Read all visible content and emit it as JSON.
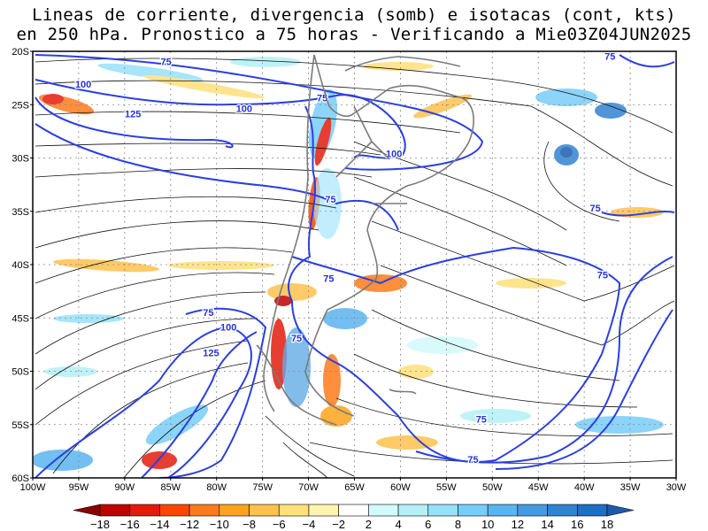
{
  "title": {
    "line1": "Lineas de corriente, divergencia (somb) e isotacas (cont, kts)",
    "line2": "en 250 hPa. Pronostico a 75 horas - Verificando a Mie03Z04JUN2025"
  },
  "map": {
    "lat_labels": [
      "20S",
      "25S",
      "30S",
      "35S",
      "40S",
      "45S",
      "50S",
      "55S",
      "60S"
    ],
    "lon_labels": [
      "100W",
      "95W",
      "90W",
      "85W",
      "80W",
      "75W",
      "70W",
      "65W",
      "60W",
      "55W",
      "50W",
      "45W",
      "40W",
      "35W",
      "30W"
    ],
    "isotach_labels": [
      {
        "text": "75",
        "lon": -85.5,
        "lat": -21.3
      },
      {
        "text": "100",
        "lon": -94.5,
        "lat": -23.4
      },
      {
        "text": "125",
        "lon": -89.1,
        "lat": -26.2
      },
      {
        "text": "100",
        "lon": -77.0,
        "lat": -25.7
      },
      {
        "text": "75",
        "lon": -68.5,
        "lat": -24.7
      },
      {
        "text": "100",
        "lon": -60.7,
        "lat": -29.9
      },
      {
        "text": "75",
        "lon": -67.6,
        "lat": -34.2
      },
      {
        "text": "75",
        "lon": -37.2,
        "lat": -20.8
      },
      {
        "text": "75",
        "lon": -38.8,
        "lat": -35.0
      },
      {
        "text": "75",
        "lon": -67.8,
        "lat": -41.6
      },
      {
        "text": "75",
        "lon": -38.0,
        "lat": -41.3
      },
      {
        "text": "75",
        "lon": -80.9,
        "lat": -44.8
      },
      {
        "text": "100",
        "lon": -78.7,
        "lat": -46.2
      },
      {
        "text": "125",
        "lon": -80.6,
        "lat": -48.6
      },
      {
        "text": "75",
        "lon": -71.3,
        "lat": -47.2
      },
      {
        "text": "75",
        "lon": -51.2,
        "lat": -54.8
      },
      {
        "text": "75",
        "lon": -52.1,
        "lat": -58.6
      }
    ]
  },
  "colorbar": {
    "labels": [
      "-18",
      "-16",
      "-14",
      "-12",
      "-10",
      "-8",
      "-6",
      "-4",
      "-2",
      "2",
      "4",
      "6",
      "8",
      "10",
      "12",
      "14",
      "16",
      "18"
    ],
    "colors": [
      "#8b0000",
      "#c00000",
      "#e41a0c",
      "#ff4500",
      "#ff7a1a",
      "#ffa31a",
      "#ffc14d",
      "#ffe07a",
      "#fff4b0",
      "#ffffff",
      "#d2fafa",
      "#b4f0f5",
      "#96e1fa",
      "#78cdf8",
      "#5ab4f0",
      "#469be0",
      "#3282d2",
      "#1e6ec3",
      "#1e5aaa"
    ]
  }
}
